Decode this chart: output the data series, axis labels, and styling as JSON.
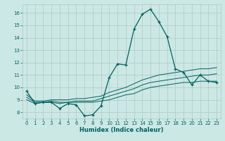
{
  "xlabel": "Humidex (Indice chaleur)",
  "bg_color": "#cce8e4",
  "grid_color": "#b0c8c4",
  "line_color": "#006060",
  "xlim": [
    -0.5,
    23.5
  ],
  "ylim": [
    7.5,
    16.7
  ],
  "yticks": [
    8,
    9,
    10,
    11,
    12,
    13,
    14,
    15,
    16
  ],
  "xticks": [
    0,
    1,
    2,
    3,
    4,
    5,
    6,
    7,
    8,
    9,
    10,
    11,
    12,
    13,
    14,
    15,
    16,
    17,
    18,
    19,
    20,
    21,
    22,
    23
  ],
  "main_x": [
    0,
    1,
    2,
    3,
    4,
    5,
    6,
    7,
    8,
    9,
    10,
    11,
    12,
    13,
    14,
    15,
    16,
    17,
    18,
    19,
    20,
    21,
    22,
    23
  ],
  "main_y": [
    9.7,
    8.7,
    8.8,
    8.8,
    8.3,
    8.7,
    8.6,
    7.7,
    7.8,
    8.5,
    10.8,
    11.9,
    11.8,
    14.7,
    15.9,
    16.3,
    15.3,
    14.1,
    11.5,
    11.2,
    10.2,
    11.0,
    10.5,
    10.4
  ],
  "line2_x": [
    0,
    1,
    2,
    3,
    4,
    5,
    6,
    7,
    8,
    9,
    10,
    11,
    12,
    13,
    14,
    15,
    16,
    17,
    18,
    19,
    20,
    21,
    22,
    23
  ],
  "line2_y": [
    9.2,
    8.8,
    8.8,
    8.9,
    8.8,
    8.8,
    8.9,
    8.9,
    8.9,
    9.1,
    9.3,
    9.5,
    9.7,
    9.9,
    10.2,
    10.4,
    10.5,
    10.6,
    10.7,
    10.8,
    10.9,
    11.0,
    11.0,
    11.1
  ],
  "line3_x": [
    0,
    1,
    2,
    3,
    4,
    5,
    6,
    7,
    8,
    9,
    10,
    11,
    12,
    13,
    14,
    15,
    16,
    17,
    18,
    19,
    20,
    21,
    22,
    23
  ],
  "line3_y": [
    9.0,
    8.7,
    8.8,
    8.8,
    8.7,
    8.8,
    8.8,
    8.8,
    8.8,
    8.9,
    9.0,
    9.2,
    9.4,
    9.5,
    9.8,
    10.0,
    10.1,
    10.2,
    10.3,
    10.4,
    10.4,
    10.5,
    10.5,
    10.5
  ],
  "line4_x": [
    0,
    1,
    2,
    3,
    4,
    5,
    6,
    7,
    8,
    9,
    10,
    11,
    12,
    13,
    14,
    15,
    16,
    17,
    18,
    19,
    20,
    21,
    22,
    23
  ],
  "line4_y": [
    9.4,
    8.9,
    8.9,
    9.0,
    9.0,
    9.0,
    9.1,
    9.1,
    9.2,
    9.3,
    9.6,
    9.8,
    10.0,
    10.3,
    10.6,
    10.8,
    11.0,
    11.1,
    11.2,
    11.3,
    11.4,
    11.5,
    11.5,
    11.6
  ]
}
